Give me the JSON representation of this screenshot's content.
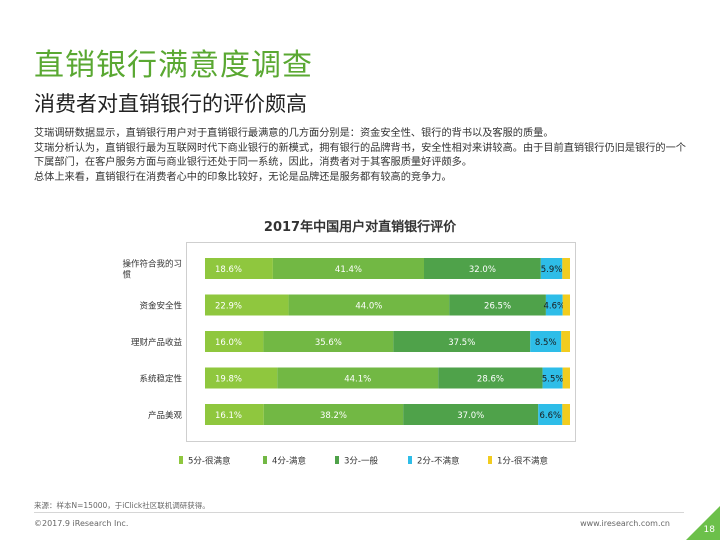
{
  "title": "直销银行满意度调查",
  "subtitle": "消费者对直销银行的评价颇高",
  "body": [
    "艾瑞调研数据显示，直销银行用户对于直销银行最满意的几方面分别是：资金安全性、银行的背书以及客服的质量。",
    "艾瑞分析认为，直销银行最为互联网时代下商业银行的新模式，拥有银行的品牌背书，安全性相对来讲较高。由于目前直销银行仍旧是银行的一个下属部门，在客户服务方面与商业银行还处于同一系统，因此，消费者对于其客服质量好评颇多。",
    "总体上来看，直销银行在消费者心中的印象比较好，无论是品牌还是服务都有较高的竞争力。"
  ],
  "chart_data": {
    "type": "bar",
    "orientation": "horizontal-stacked-100",
    "title": "2017年中国用户对直销银行评价",
    "categories": [
      "操作符合我的习惯",
      "资金安全性",
      "理财产品收益",
      "系统稳定性",
      "产品美观"
    ],
    "series": [
      {
        "name": "5分-很满意",
        "color": "#8fc73e",
        "values": [
          18.6,
          22.9,
          16.0,
          19.8,
          16.1
        ]
      },
      {
        "name": "4分-满意",
        "color": "#72b844",
        "values": [
          41.4,
          44.0,
          35.6,
          44.1,
          38.2
        ]
      },
      {
        "name": "3分-一般",
        "color": "#4fa24a",
        "values": [
          32.0,
          26.5,
          37.5,
          28.6,
          37.0
        ]
      },
      {
        "name": "2分-不满意",
        "color": "#2ebde8",
        "values": [
          5.9,
          4.6,
          8.5,
          5.5,
          6.6
        ]
      },
      {
        "name": "1分-很不满意",
        "color": "#f2cc1f",
        "values": [
          2.1,
          2.0,
          2.4,
          2.0,
          2.1
        ]
      }
    ],
    "labeled_series": [
      "5分-很满意",
      "4分-满意",
      "3分-一般",
      "2分-不满意"
    ],
    "xlim": [
      0,
      100
    ],
    "value_suffix": "%",
    "legend_position": "bottom"
  },
  "footnote": "来源：样本N=15000，于iClick社区联机调研获得。",
  "copyright": "©2017.9 iResearch Inc.",
  "website": "www.iresearch.com.cn",
  "page_number": "18"
}
